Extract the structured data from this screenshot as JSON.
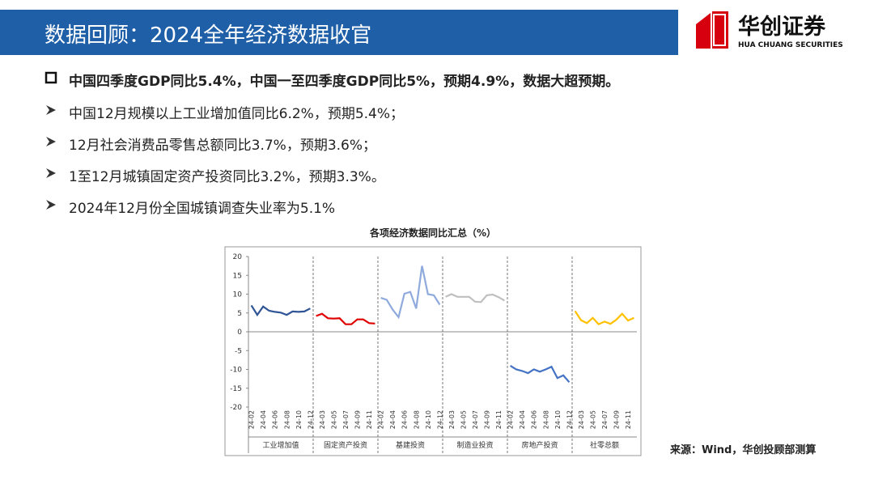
{
  "header": {
    "title": "数据回顾：2024全年经济数据收官",
    "logo_cn": "华创证券",
    "logo_en": "HUA CHUANG SECURITIES"
  },
  "bullets": [
    "中国四季度GDP同比5.4%，中国一至四季度GDP同比5%，预期4.9%，数据大超预期。",
    "中国12月规模以上工业增加值同比6.2%，预期5.4%；",
    "12月社会消费品零售总额同比3.7%，预期3.6%；",
    "1至12月城镇固定资产投资同比3.2%，预期3.3%。",
    "2024年12月份全国城镇调查失业率为5.1%"
  ],
  "source": "来源：Wind，华创投顾部测算",
  "chart_data": {
    "type": "line",
    "title": "各项经济数据同比汇总（%）",
    "ylim": [
      -20,
      20
    ],
    "yticks": [
      -20,
      -15,
      -10,
      -5,
      0,
      5,
      10,
      15,
      20
    ],
    "panels": [
      {
        "name": "工业增加值",
        "color": "#2f5597",
        "categories": [
          "24-02",
          null,
          "24-04",
          null,
          "24-06",
          null,
          "24-08",
          null,
          "24-10",
          null,
          "24-12"
        ],
        "values": [
          7.0,
          4.5,
          6.7,
          5.6,
          5.3,
          5.1,
          4.5,
          5.4,
          5.3,
          5.4,
          6.2
        ]
      },
      {
        "name": "固定资产投资",
        "color": "#e00000",
        "categories": [
          null,
          "24-03",
          null,
          "24-05",
          null,
          "24-07",
          null,
          "24-09",
          null,
          "24-11",
          null
        ],
        "values": [
          4.2,
          4.8,
          3.6,
          3.5,
          3.6,
          2.0,
          2.0,
          3.3,
          3.3,
          2.3,
          2.2
        ]
      },
      {
        "name": "基建投资",
        "color": "#8faadc",
        "categories": [
          "24-02",
          null,
          "24-04",
          null,
          "24-06",
          null,
          "24-08",
          null,
          "24-10",
          null,
          "24-12"
        ],
        "values": [
          9.0,
          8.5,
          5.9,
          3.9,
          10.1,
          10.6,
          6.2,
          17.5,
          10.0,
          9.7,
          7.2
        ]
      },
      {
        "name": "制造业投资",
        "color": "#bfbfbf",
        "categories": [
          null,
          "24-03",
          null,
          "24-05",
          null,
          "24-07",
          null,
          "24-09",
          null,
          "24-11",
          null
        ],
        "values": [
          9.3,
          10.0,
          9.3,
          9.3,
          9.3,
          8.0,
          7.9,
          9.7,
          9.9,
          9.2,
          8.3
        ]
      },
      {
        "name": "房地产投资",
        "color": "#4472c4",
        "categories": [
          "24-02",
          null,
          "24-04",
          null,
          "24-06",
          null,
          "24-08",
          null,
          "24-10",
          null,
          "24-12"
        ],
        "values": [
          -9.0,
          -10.0,
          -10.4,
          -11.0,
          -10.0,
          -10.6,
          -10.0,
          -9.3,
          -12.3,
          -11.6,
          -13.4
        ]
      },
      {
        "name": "社零总额",
        "color": "#ffc000",
        "categories": [
          null,
          "24-03",
          null,
          "24-05",
          null,
          "24-07",
          null,
          "24-09",
          null,
          "24-11",
          null
        ],
        "values": [
          5.5,
          3.1,
          2.3,
          3.7,
          2.0,
          2.7,
          2.1,
          3.2,
          4.8,
          3.0,
          3.7
        ]
      }
    ]
  }
}
